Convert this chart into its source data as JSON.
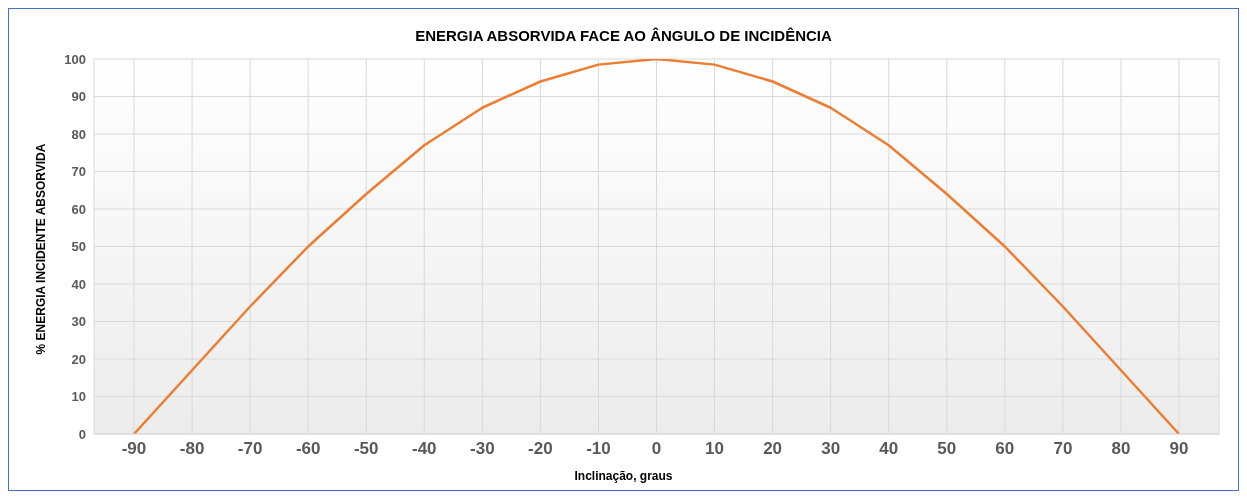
{
  "chart_data": {
    "type": "line",
    "title": "ENERGIA ABSORVIDA FACE AO ÂNGULO DE INCIDÊNCIA",
    "xlabel": "Inclinação, graus",
    "ylabel": "% ENERGIA INCIDENTE ABSORVIDA",
    "categories": [
      "-90",
      "-80",
      "-70",
      "-60",
      "-50",
      "-40",
      "-30",
      "-20",
      "-10",
      "0",
      "10",
      "20",
      "30",
      "40",
      "50",
      "60",
      "70",
      "80",
      "90"
    ],
    "series": [
      {
        "color": "#ed7d31",
        "values": [
          0,
          17,
          34,
          50,
          64,
          77,
          87,
          94,
          98.5,
          100,
          98.5,
          94,
          87,
          77,
          64,
          50,
          34,
          17,
          0
        ]
      }
    ],
    "ylim": [
      0,
      100
    ],
    "yticks": [
      0,
      10,
      20,
      30,
      40,
      50,
      60,
      70,
      80,
      90,
      100
    ],
    "grid": true,
    "legend": false,
    "marker": "none",
    "line_style": "solid"
  }
}
